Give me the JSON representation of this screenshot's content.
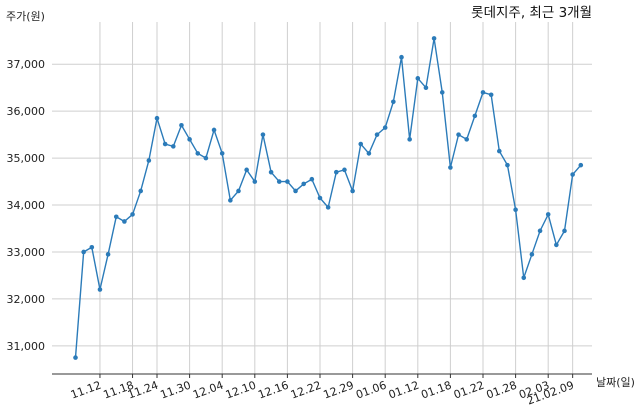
{
  "chart_data": {
    "type": "line",
    "title": "롯데지주, 최근 3개월",
    "ylabel": "주가(원)",
    "xlabel": "날짜(일)",
    "ylim": [
      30400,
      37900
    ],
    "yticks": [
      31000,
      32000,
      33000,
      34000,
      35000,
      36000,
      37000
    ],
    "ytick_labels": [
      "31,000",
      "32,000",
      "33,000",
      "34,000",
      "35,000",
      "36,000",
      "37,000"
    ],
    "xtick_labels": [
      "11.12",
      "11.18",
      "11.24",
      "11.30",
      "12.04",
      "12.10",
      "12.16",
      "12.22",
      "12.29",
      "01.06",
      "01.12",
      "01.18",
      "01.22",
      "01.28",
      "02.03",
      "21.02.09"
    ],
    "xtick_index": [
      3,
      7,
      10,
      14,
      18,
      22,
      26,
      30,
      34,
      38,
      42,
      46,
      50,
      54,
      58,
      61
    ],
    "grid": true,
    "line_color": "#2b7bb9",
    "series": [
      {
        "values": [
          30750,
          33000,
          33100,
          32200,
          32950,
          33750,
          33650,
          33800,
          34300,
          34950,
          35850,
          35300,
          35250,
          35700,
          35400,
          35100,
          35000,
          35600,
          35100,
          34100,
          34300,
          34750,
          34500,
          35500,
          34700,
          34500,
          34500,
          34300,
          34450,
          34550,
          34150,
          33950,
          34700,
          34750,
          34300,
          35300,
          35100,
          35500,
          35650,
          36200,
          37150,
          35400,
          36700,
          36500,
          37550,
          36400,
          34800,
          35500,
          35400,
          35900,
          36400,
          36350,
          35150,
          34850,
          33900,
          32450,
          32950,
          33450,
          33800,
          33150,
          33450,
          34650,
          34850
        ]
      }
    ]
  }
}
